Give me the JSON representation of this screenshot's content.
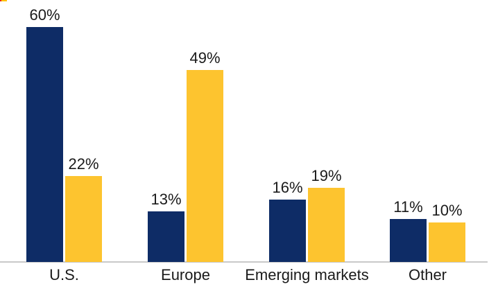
{
  "chart_data": {
    "type": "bar",
    "title": "",
    "categories": [
      "U.S.",
      "Europe",
      "Emerging markets",
      "Other"
    ],
    "series": [
      {
        "name": "navy-series",
        "color": "#0e2c66",
        "values": [
          60,
          13,
          16,
          11
        ],
        "labels": [
          "60%",
          "13%",
          "16%",
          "11%"
        ]
      },
      {
        "name": "gold-series",
        "color": "#fdc42f",
        "values": [
          22,
          49,
          19,
          10
        ],
        "labels": [
          "22%",
          "49%",
          "19%",
          "10%"
        ]
      }
    ],
    "unit": "%",
    "ylim": [
      0,
      64
    ],
    "grid": false,
    "legend": "none",
    "data_labels": true,
    "axis_line_color": "#c9c9c9",
    "text_color": "#1a1a1a",
    "background": "#ffffff",
    "corner_artifact_colors": [
      "#e8231a",
      "#ffc20e"
    ]
  }
}
